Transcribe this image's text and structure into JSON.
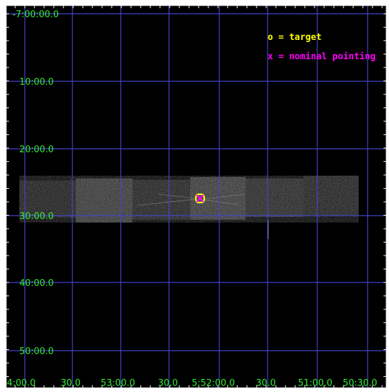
{
  "figure": {
    "background_color": "#000000",
    "grid_color": "#4444cc",
    "label_color": "#33ee33"
  },
  "axes": {
    "y_labels": [
      "-7:00:00.0",
      "10:00.0",
      "20:00.0",
      "30:00.0",
      "40:00.0",
      "50:00.0"
    ],
    "x_labels": [
      "4:00.0",
      "30.0",
      "53:00.0",
      "30.0",
      "5:52:00.0",
      "30.0",
      "51:00.0",
      "50:30.0"
    ]
  },
  "legend": {
    "target_label": "o = target",
    "target_color": "#ffff00",
    "pointing_label": "x = nominal pointing",
    "pointing_color": "#ff00ff"
  },
  "markers": {
    "target_symbol": "o",
    "pointing_symbol": "x"
  }
}
